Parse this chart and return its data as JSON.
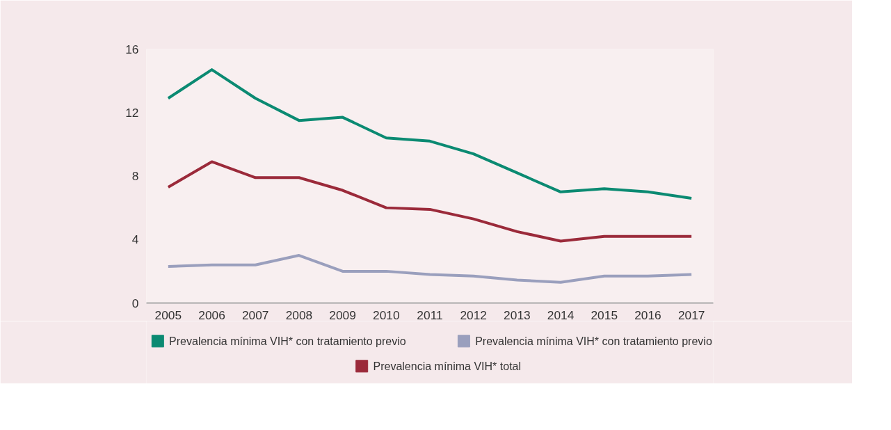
{
  "chart_data": {
    "type": "line",
    "categories": [
      "2005",
      "2006",
      "2007",
      "2008",
      "2009",
      "2010",
      "2011",
      "2012",
      "2013",
      "2014",
      "2015",
      "2016",
      "2017"
    ],
    "ylim": [
      0,
      16
    ],
    "yticks": [
      0,
      4,
      8,
      12,
      16
    ],
    "grid": false,
    "legend": "bottom",
    "marker": "none",
    "line_style": "solid",
    "series": [
      {
        "name": "Prevalencia mínima VIH* con tratamiento previo",
        "color": "#0b8a72",
        "values": [
          12.9,
          14.7,
          12.9,
          11.5,
          11.7,
          10.4,
          10.2,
          9.4,
          8.2,
          7.0,
          7.2,
          7.0,
          6.6
        ]
      },
      {
        "name": "Prevalencia mínima VIH* con tratamiento previo",
        "color": "#9a9fbd",
        "values": [
          2.3,
          2.4,
          2.4,
          3.0,
          2.0,
          2.0,
          1.8,
          1.7,
          1.45,
          1.3,
          1.7,
          1.7,
          1.8
        ]
      },
      {
        "name": "Prevalencia mínima VIH* total",
        "color": "#9b2a3a",
        "values": [
          7.3,
          8.9,
          7.9,
          7.9,
          7.1,
          6.0,
          5.9,
          5.3,
          4.5,
          3.9,
          4.2,
          4.2,
          4.2
        ]
      }
    ]
  }
}
